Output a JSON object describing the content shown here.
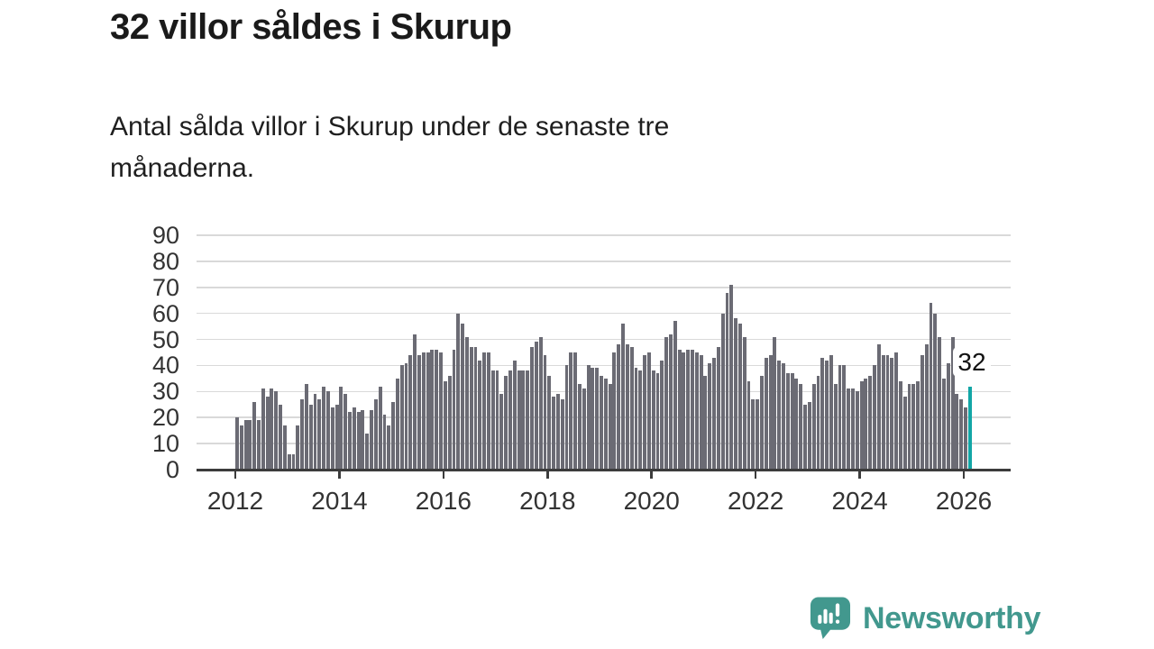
{
  "title": "32 villor såldes i Skurup",
  "subtitle_lines": [
    "Antal sålda villor i Skurup under de senaste tre",
    "månaderna."
  ],
  "chart_data": {
    "type": "bar",
    "title": "32 villor såldes i Skurup",
    "x_start": "2012-01",
    "frequency": "monthly",
    "values": [
      20,
      17,
      19,
      19,
      26,
      19,
      31,
      28,
      31,
      30,
      25,
      17,
      6,
      6,
      17,
      27,
      33,
      25,
      29,
      27,
      32,
      30,
      24,
      25,
      32,
      29,
      22,
      24,
      22,
      23,
      14,
      23,
      27,
      32,
      21,
      17,
      26,
      35,
      40,
      41,
      44,
      52,
      44,
      45,
      45,
      46,
      46,
      45,
      34,
      36,
      46,
      60,
      56,
      51,
      47,
      47,
      42,
      45,
      45,
      38,
      38,
      29,
      36,
      38,
      42,
      38,
      38,
      38,
      47,
      49,
      51,
      44,
      36,
      28,
      29,
      27,
      40,
      45,
      45,
      33,
      31,
      40,
      39,
      39,
      36,
      35,
      33,
      45,
      48,
      56,
      48,
      47,
      39,
      38,
      44,
      45,
      38,
      37,
      42,
      51,
      52,
      57,
      46,
      45,
      46,
      46,
      45,
      44,
      36,
      41,
      43,
      47,
      60,
      68,
      71,
      58,
      56,
      51,
      34,
      27,
      27,
      36,
      43,
      44,
      51,
      42,
      41,
      37,
      37,
      35,
      33,
      25,
      26,
      33,
      36,
      43,
      42,
      44,
      33,
      40,
      40,
      31,
      31,
      30,
      34,
      35,
      36,
      40,
      48,
      44,
      44,
      43,
      45,
      34,
      28,
      33,
      33,
      34,
      44,
      48,
      64,
      60,
      51,
      35,
      41,
      51,
      29,
      27,
      24,
      32
    ],
    "highlight_last": true,
    "highlight_value": 32,
    "annotation": {
      "label": "32"
    },
    "ylim": [
      0,
      90
    ],
    "y_tick_labels": [
      "0",
      "10",
      "20",
      "30",
      "40",
      "50",
      "60",
      "70",
      "80",
      "90"
    ],
    "x_tick_labels": [
      "2012",
      "2014",
      "2016",
      "2018",
      "2020",
      "2022",
      "2024",
      "2026"
    ],
    "grid": "horizontal",
    "legend": "none",
    "bar_color": "#6b6b74",
    "highlight_color": "#12a6a6"
  },
  "footer": {
    "brand": "Newsworthy",
    "brand_color": "#42988e",
    "logo_icon": "newsworthy-speech-bubble-chart-icon"
  }
}
